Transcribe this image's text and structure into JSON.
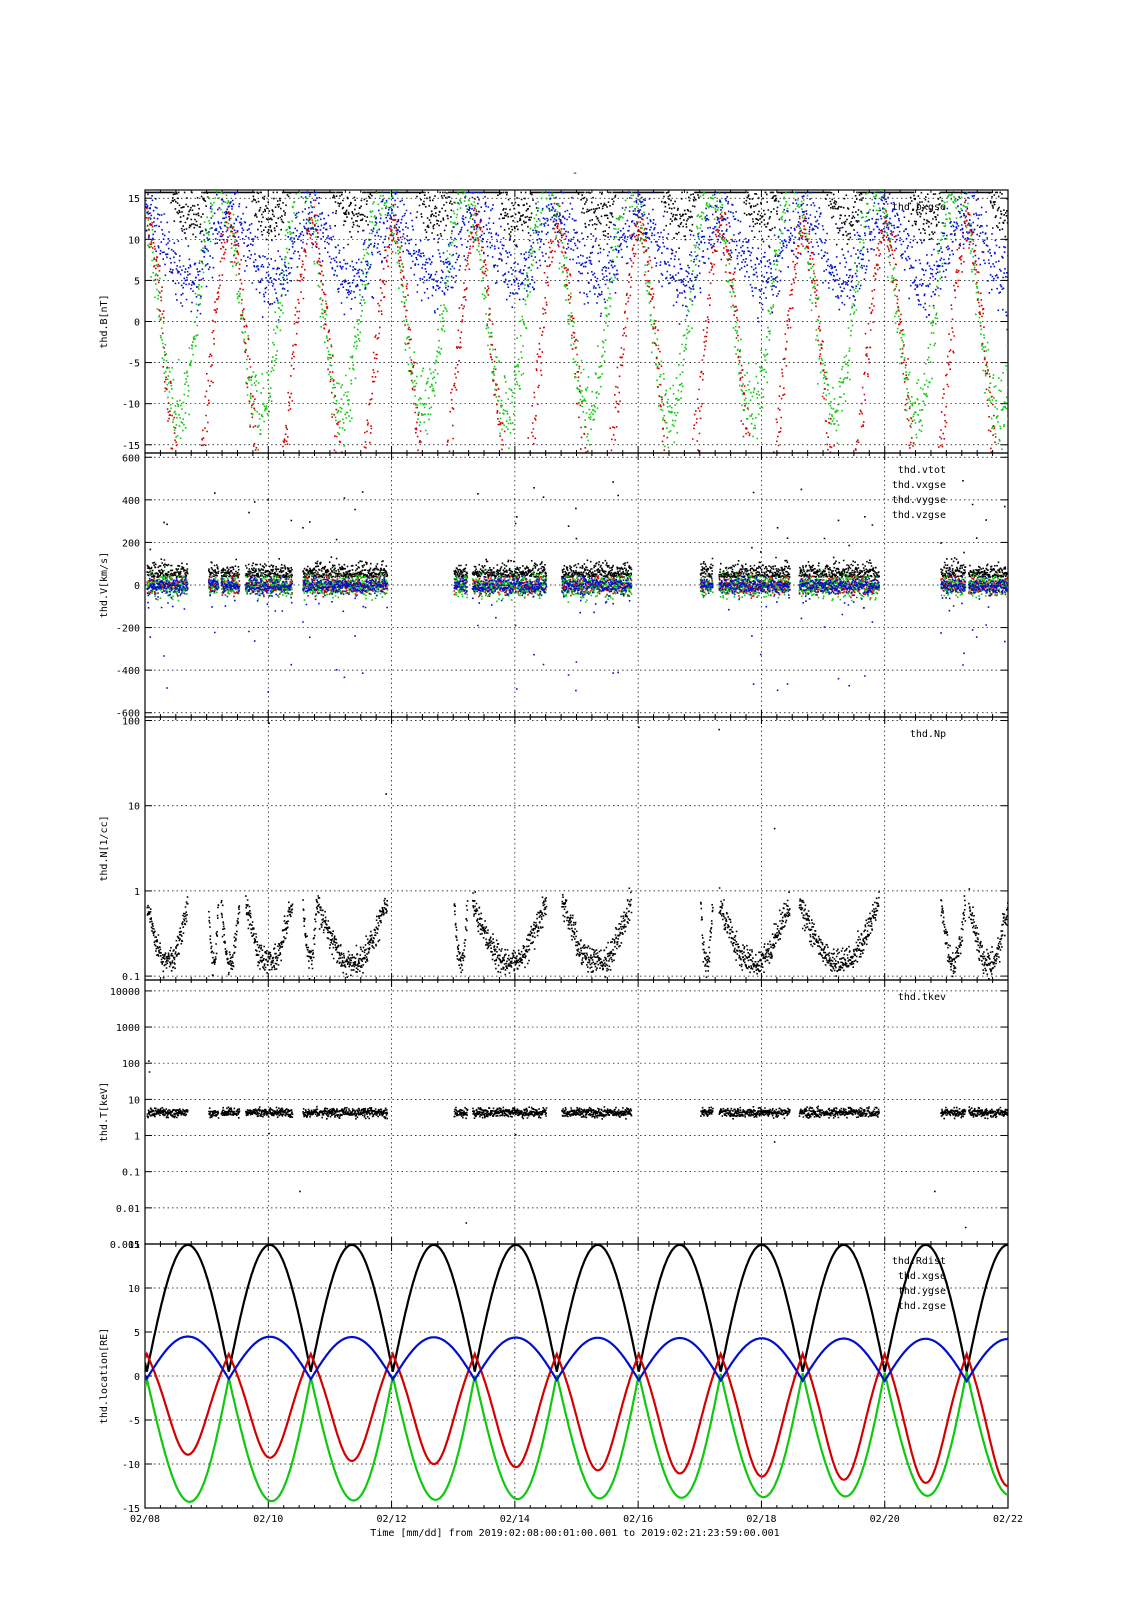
{
  "top_mark": "-",
  "footer": {
    "time_label": "Time [mm/dd]",
    "range_text": "from 2019:02:08:00:01:00.001  to  2019:02:21:23:59:00.001"
  },
  "chart_data": [
    {
      "type": "scatter",
      "ylabel": "thd.B[nT]",
      "ylim": [
        -16,
        16
      ],
      "yticks": [
        "15",
        "10",
        "5",
        "0",
        "-5",
        "-10",
        "-15"
      ],
      "ytick_values": [
        15,
        10,
        5,
        0,
        -5,
        -10,
        -15
      ],
      "legend": [
        "thd.bxgse"
      ],
      "series_colors": [
        "#000000",
        "#d40000",
        "#10c810",
        "#0010c8"
      ],
      "grid": true
    },
    {
      "type": "scatter",
      "ylabel": "thd.V[km/s]",
      "ylim": [
        -620,
        620
      ],
      "yticks": [
        "600",
        "400",
        "200",
        "0",
        "-200",
        "-400",
        "-600"
      ],
      "ytick_values": [
        600,
        400,
        200,
        0,
        -200,
        -400,
        -600
      ],
      "legend": [
        "thd.vtot",
        "thd.vxgse",
        "thd.vygse",
        "thd.vzgse"
      ],
      "series_colors": [
        "#000000",
        "#d40000",
        "#10c810",
        "#0010c8"
      ],
      "grid": true
    },
    {
      "type": "scatter",
      "ylabel": "thd.N[1/cc]",
      "scale": "log",
      "ylim": [
        0.09,
        110
      ],
      "yticks": [
        "100",
        "10",
        "1",
        "0.1"
      ],
      "ytick_values": [
        100,
        10,
        1,
        0.1
      ],
      "legend": [
        "thd.Np"
      ],
      "series_colors": [
        "#000000"
      ],
      "grid": true
    },
    {
      "type": "scatter",
      "ylabel": "thd.T[keV]",
      "scale": "log",
      "ylim": [
        0.001,
        20000
      ],
      "yticks": [
        "10000",
        "1000",
        "100",
        "10",
        "1",
        "0.1",
        "0.01",
        "0.001"
      ],
      "ytick_values": [
        10000,
        1000,
        100,
        10,
        1,
        0.1,
        0.01,
        0.001
      ],
      "legend": [
        "thd.tkev"
      ],
      "series_colors": [
        "#000000"
      ],
      "grid": true
    },
    {
      "type": "line",
      "ylabel": "thd.location[RE]",
      "ylim": [
        -15,
        15
      ],
      "yticks": [
        "15",
        "10",
        "5",
        "0",
        "-5",
        "-10",
        "-15"
      ],
      "ytick_values": [
        15,
        10,
        5,
        0,
        -5,
        -10,
        -15
      ],
      "legend": [
        "thd.Rdist",
        "thd.xgse",
        "thd.ygse",
        "thd.zgse"
      ],
      "series_colors": [
        "#000000",
        "#d40000",
        "#10c810",
        "#0010c8"
      ],
      "grid": true
    }
  ],
  "xaxis": {
    "label": "Time [mm/dd]",
    "ticks": [
      "02/08",
      "02/10",
      "02/12",
      "02/14",
      "02/16",
      "02/18",
      "02/20",
      "02/22"
    ],
    "xlim_days": [
      8,
      22
    ]
  }
}
